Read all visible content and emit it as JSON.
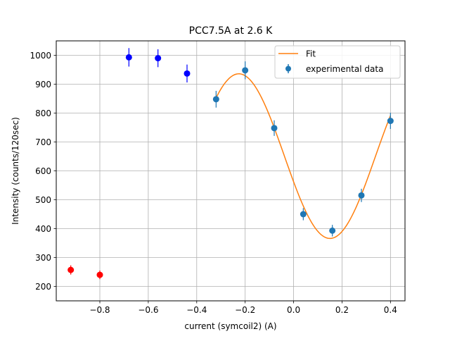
{
  "chart_data": {
    "type": "scatter",
    "title": "PCC7.5A at 2.6 K",
    "xlabel": "current (symcoil2) (A)",
    "ylabel": "Intensity (counts/120sec)",
    "xlim": [
      -0.98,
      0.46
    ],
    "ylim": [
      150,
      1050
    ],
    "x_ticks": [
      -0.8,
      -0.6,
      -0.4,
      -0.2,
      0.0,
      0.2,
      0.4
    ],
    "x_tick_labels": [
      "−0.8",
      "−0.6",
      "−0.4",
      "−0.2",
      "0.0",
      "0.2",
      "0.4"
    ],
    "y_ticks": [
      200,
      300,
      400,
      500,
      600,
      700,
      800,
      900,
      1000
    ],
    "y_tick_labels": [
      "200",
      "300",
      "400",
      "500",
      "600",
      "700",
      "800",
      "900",
      "1000"
    ],
    "grid": true,
    "legend_position": "top-right",
    "legend": [
      {
        "label": "Fit",
        "kind": "line",
        "color": "#ff7f0e"
      },
      {
        "label": "experimental data",
        "kind": "errorbar",
        "color": "#1f77b4"
      }
    ],
    "series": [
      {
        "name": "experimental data",
        "color": "#1f77b4",
        "x": [
          -0.32,
          -0.2,
          -0.08,
          0.04,
          0.16,
          0.28,
          0.4
        ],
        "y": [
          848,
          948,
          748,
          450,
          393,
          515,
          773
        ],
        "yerr": [
          29,
          31,
          27,
          21,
          20,
          23,
          28
        ]
      },
      {
        "color": "#0000ff",
        "x": [
          -0.68,
          -0.56,
          -0.44
        ],
        "y": [
          993,
          990,
          937
        ],
        "yerr": [
          32,
          31,
          31
        ]
      },
      {
        "color": "#ff0000",
        "x": [
          -0.92,
          -0.8
        ],
        "y": [
          257,
          240
        ],
        "yerr": [
          16,
          15
        ]
      }
    ],
    "fit": {
      "name": "Fit",
      "color": "#ff7f0e",
      "x_range": [
        -0.32,
        0.4
      ],
      "model": "offset + amplitude*cos(omega*(x - x_peak))",
      "offset": 651,
      "amplitude": 285,
      "omega": 8.35,
      "x_peak": -0.226
    }
  }
}
